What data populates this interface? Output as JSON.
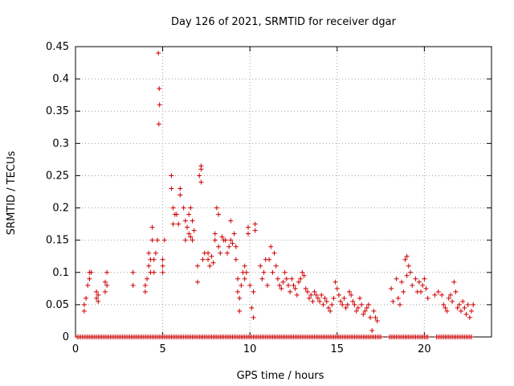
{
  "chart_data": {
    "type": "scatter",
    "title": "Day 126 of 2021, SRMTID for receiver dgar",
    "xlabel": "GPS time / hours",
    "ylabel": "SRMTID / TECUs",
    "xlim": [
      0,
      23.85
    ],
    "ylim": [
      0,
      0.45
    ],
    "xticks": [
      0,
      5,
      10,
      15,
      20
    ],
    "xtick_labels": [
      "0",
      "5",
      "10",
      "15",
      "20"
    ],
    "yticks": [
      0,
      0.05,
      0.1,
      0.15,
      0.2,
      0.25,
      0.3,
      0.35,
      0.4,
      0.45
    ],
    "ytick_labels": [
      "0",
      "0.05",
      "0.1",
      "0.15",
      "0.2",
      "0.25",
      "0.3",
      "0.35",
      "0.4",
      "0.45"
    ],
    "grid": true,
    "marker": "+",
    "color": "#cc0000",
    "series": [
      {
        "name": "SRMTID",
        "points": [
          [
            0.5,
            0.04
          ],
          [
            0.5,
            0.05
          ],
          [
            0.6,
            0.06
          ],
          [
            0.7,
            0.08
          ],
          [
            0.8,
            0.09
          ],
          [
            0.8,
            0.1
          ],
          [
            0.9,
            0.1
          ],
          [
            1.2,
            0.06
          ],
          [
            1.2,
            0.07
          ],
          [
            1.3,
            0.055
          ],
          [
            1.3,
            0.065
          ],
          [
            1.7,
            0.07
          ],
          [
            1.7,
            0.085
          ],
          [
            1.8,
            0.1
          ],
          [
            1.8,
            0.08
          ],
          [
            3.3,
            0.1
          ],
          [
            3.3,
            0.08
          ],
          [
            4.0,
            0.07
          ],
          [
            4.0,
            0.08
          ],
          [
            4.1,
            0.09
          ],
          [
            4.2,
            0.11
          ],
          [
            4.2,
            0.13
          ],
          [
            4.3,
            0.12
          ],
          [
            4.3,
            0.1
          ],
          [
            4.4,
            0.15
          ],
          [
            4.4,
            0.17
          ],
          [
            4.5,
            0.12
          ],
          [
            4.5,
            0.1
          ],
          [
            4.6,
            0.13
          ],
          [
            4.7,
            0.15
          ],
          [
            4.75,
            0.44
          ],
          [
            4.78,
            0.33
          ],
          [
            4.8,
            0.385
          ],
          [
            4.82,
            0.36
          ],
          [
            5.0,
            0.1
          ],
          [
            5.0,
            0.11
          ],
          [
            5.0,
            0.12
          ],
          [
            5.1,
            0.15
          ],
          [
            5.5,
            0.25
          ],
          [
            5.5,
            0.23
          ],
          [
            5.6,
            0.2
          ],
          [
            5.6,
            0.175
          ],
          [
            5.7,
            0.19
          ],
          [
            5.8,
            0.19
          ],
          [
            5.9,
            0.175
          ],
          [
            6.0,
            0.23
          ],
          [
            6.0,
            0.22
          ],
          [
            6.2,
            0.2
          ],
          [
            6.3,
            0.18
          ],
          [
            6.3,
            0.15
          ],
          [
            6.4,
            0.17
          ],
          [
            6.5,
            0.16
          ],
          [
            6.5,
            0.19
          ],
          [
            6.6,
            0.2
          ],
          [
            6.6,
            0.155
          ],
          [
            6.7,
            0.15
          ],
          [
            6.7,
            0.18
          ],
          [
            6.8,
            0.165
          ],
          [
            7.0,
            0.085
          ],
          [
            7.0,
            0.11
          ],
          [
            7.1,
            0.25
          ],
          [
            7.2,
            0.26
          ],
          [
            7.2,
            0.265
          ],
          [
            7.2,
            0.24
          ],
          [
            7.3,
            0.12
          ],
          [
            7.4,
            0.13
          ],
          [
            7.6,
            0.13
          ],
          [
            7.6,
            0.12
          ],
          [
            7.7,
            0.11
          ],
          [
            7.8,
            0.125
          ],
          [
            7.9,
            0.115
          ],
          [
            8.0,
            0.15
          ],
          [
            8.0,
            0.16
          ],
          [
            8.1,
            0.2
          ],
          [
            8.2,
            0.19
          ],
          [
            8.2,
            0.14
          ],
          [
            8.3,
            0.13
          ],
          [
            8.4,
            0.155
          ],
          [
            8.5,
            0.15
          ],
          [
            8.6,
            0.15
          ],
          [
            8.7,
            0.13
          ],
          [
            8.8,
            0.14
          ],
          [
            8.9,
            0.18
          ],
          [
            8.9,
            0.15
          ],
          [
            9.0,
            0.145
          ],
          [
            9.1,
            0.16
          ],
          [
            9.2,
            0.14
          ],
          [
            9.2,
            0.12
          ],
          [
            9.3,
            0.09
          ],
          [
            9.3,
            0.07
          ],
          [
            9.4,
            0.04
          ],
          [
            9.4,
            0.06
          ],
          [
            9.5,
            0.08
          ],
          [
            9.6,
            0.1
          ],
          [
            9.7,
            0.11
          ],
          [
            9.7,
            0.09
          ],
          [
            9.8,
            0.1
          ],
          [
            9.9,
            0.17
          ],
          [
            9.9,
            0.16
          ],
          [
            10.0,
            0.08
          ],
          [
            10.1,
            0.045
          ],
          [
            10.2,
            0.03
          ],
          [
            10.2,
            0.07
          ],
          [
            10.3,
            0.165
          ],
          [
            10.3,
            0.175
          ],
          [
            10.6,
            0.11
          ],
          [
            10.7,
            0.09
          ],
          [
            10.8,
            0.1
          ],
          [
            10.9,
            0.12
          ],
          [
            11.0,
            0.08
          ],
          [
            11.1,
            0.12
          ],
          [
            11.2,
            0.14
          ],
          [
            11.3,
            0.1
          ],
          [
            11.4,
            0.13
          ],
          [
            11.5,
            0.11
          ],
          [
            11.6,
            0.09
          ],
          [
            11.7,
            0.08
          ],
          [
            11.8,
            0.075
          ],
          [
            11.9,
            0.085
          ],
          [
            12.0,
            0.1
          ],
          [
            12.1,
            0.09
          ],
          [
            12.2,
            0.08
          ],
          [
            12.3,
            0.07
          ],
          [
            12.4,
            0.09
          ],
          [
            12.5,
            0.08
          ],
          [
            12.6,
            0.075
          ],
          [
            12.7,
            0.065
          ],
          [
            12.8,
            0.085
          ],
          [
            12.9,
            0.09
          ],
          [
            13.0,
            0.1
          ],
          [
            13.1,
            0.095
          ],
          [
            13.2,
            0.075
          ],
          [
            13.3,
            0.07
          ],
          [
            13.4,
            0.06
          ],
          [
            13.5,
            0.065
          ],
          [
            13.6,
            0.055
          ],
          [
            13.7,
            0.07
          ],
          [
            13.8,
            0.065
          ],
          [
            13.9,
            0.06
          ],
          [
            14.0,
            0.055
          ],
          [
            14.1,
            0.065
          ],
          [
            14.2,
            0.05
          ],
          [
            14.3,
            0.06
          ],
          [
            14.4,
            0.055
          ],
          [
            14.5,
            0.045
          ],
          [
            14.6,
            0.04
          ],
          [
            14.7,
            0.05
          ],
          [
            14.8,
            0.06
          ],
          [
            14.9,
            0.085
          ],
          [
            15.0,
            0.075
          ],
          [
            15.1,
            0.065
          ],
          [
            15.2,
            0.055
          ],
          [
            15.3,
            0.05
          ],
          [
            15.4,
            0.06
          ],
          [
            15.5,
            0.045
          ],
          [
            15.6,
            0.05
          ],
          [
            15.7,
            0.07
          ],
          [
            15.8,
            0.065
          ],
          [
            15.9,
            0.055
          ],
          [
            16.0,
            0.05
          ],
          [
            16.1,
            0.04
          ],
          [
            16.2,
            0.045
          ],
          [
            16.3,
            0.06
          ],
          [
            16.4,
            0.05
          ],
          [
            16.5,
            0.035
          ],
          [
            16.6,
            0.04
          ],
          [
            16.7,
            0.045
          ],
          [
            16.8,
            0.05
          ],
          [
            16.9,
            0.03
          ],
          [
            17.0,
            0.01
          ],
          [
            17.1,
            0.04
          ],
          [
            17.2,
            0.03
          ],
          [
            17.3,
            0.025
          ],
          [
            18.1,
            0.075
          ],
          [
            18.2,
            0.055
          ],
          [
            18.4,
            0.09
          ],
          [
            18.5,
            0.06
          ],
          [
            18.6,
            0.05
          ],
          [
            18.7,
            0.085
          ],
          [
            18.8,
            0.07
          ],
          [
            18.9,
            0.12
          ],
          [
            19.0,
            0.125
          ],
          [
            19.0,
            0.095
          ],
          [
            19.1,
            0.11
          ],
          [
            19.2,
            0.1
          ],
          [
            19.3,
            0.08
          ],
          [
            19.5,
            0.09
          ],
          [
            19.6,
            0.07
          ],
          [
            19.7,
            0.085
          ],
          [
            19.8,
            0.07
          ],
          [
            19.9,
            0.08
          ],
          [
            20.0,
            0.09
          ],
          [
            20.1,
            0.075
          ],
          [
            20.2,
            0.06
          ],
          [
            20.6,
            0.065
          ],
          [
            20.8,
            0.07
          ],
          [
            21.0,
            0.065
          ],
          [
            21.1,
            0.05
          ],
          [
            21.2,
            0.045
          ],
          [
            21.3,
            0.04
          ],
          [
            21.4,
            0.06
          ],
          [
            21.5,
            0.065
          ],
          [
            21.6,
            0.055
          ],
          [
            21.7,
            0.085
          ],
          [
            21.8,
            0.07
          ],
          [
            21.9,
            0.045
          ],
          [
            22.0,
            0.05
          ],
          [
            22.1,
            0.04
          ],
          [
            22.2,
            0.055
          ],
          [
            22.3,
            0.045
          ],
          [
            22.4,
            0.035
          ],
          [
            22.5,
            0.05
          ],
          [
            22.6,
            0.03
          ],
          [
            22.7,
            0.04
          ],
          [
            22.8,
            0.05
          ]
        ]
      },
      {
        "name": "zero values",
        "x_ranges": [
          [
            0.1,
            17.5
          ],
          [
            18.0,
            20.2
          ],
          [
            20.7,
            22.7
          ]
        ],
        "step": 0.1,
        "y": 0
      }
    ]
  }
}
